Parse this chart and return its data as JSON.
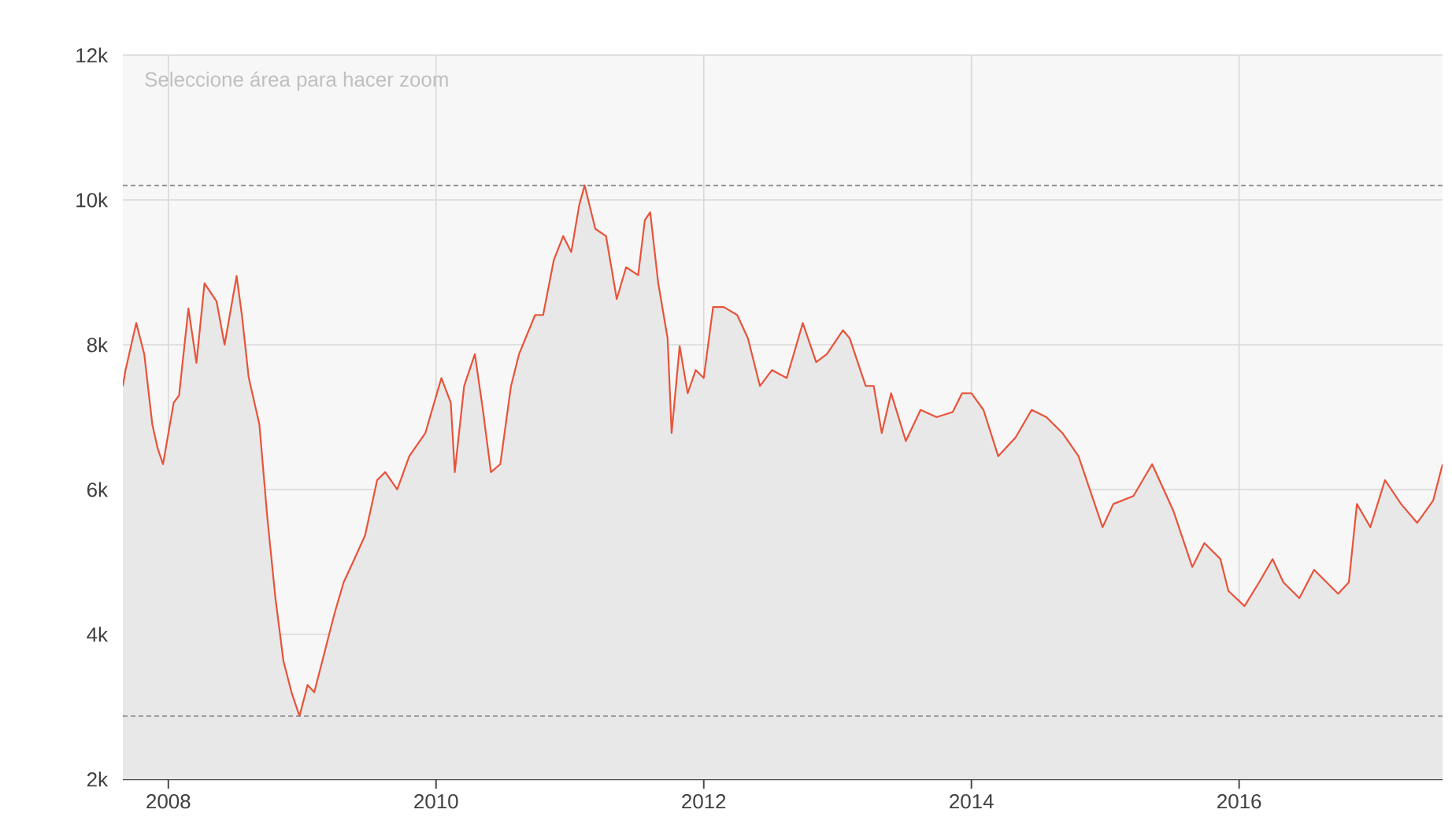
{
  "chart_data": {
    "type": "area",
    "annotations": [
      "Seleccione área para hacer zoom"
    ],
    "x": [
      2007.66,
      2007.68,
      2007.76,
      2007.82,
      2007.88,
      2007.92,
      2007.96,
      2008.04,
      2008.08,
      2008.15,
      2008.21,
      2008.27,
      2008.36,
      2008.42,
      2008.51,
      2008.55,
      2008.6,
      2008.68,
      2008.74,
      2008.8,
      2008.86,
      2008.92,
      2008.98,
      2009.04,
      2009.09,
      2009.15,
      2009.24,
      2009.31,
      2009.39,
      2009.47,
      2009.56,
      2009.62,
      2009.71,
      2009.8,
      2009.92,
      2010.04,
      2010.11,
      2010.14,
      2010.21,
      2010.29,
      2010.35,
      2010.41,
      2010.48,
      2010.56,
      2010.62,
      2010.74,
      2010.8,
      2010.88,
      2010.95,
      2011.01,
      2011.07,
      2011.11,
      2011.19,
      2011.27,
      2011.35,
      2011.42,
      2011.51,
      2011.56,
      2011.6,
      2011.66,
      2011.73,
      2011.76,
      2011.82,
      2011.88,
      2011.94,
      2012.0,
      2012.07,
      2012.15,
      2012.25,
      2012.33,
      2012.42,
      2012.51,
      2012.62,
      2012.74,
      2012.84,
      2012.92,
      2013.04,
      2013.09,
      2013.21,
      2013.27,
      2013.33,
      2013.4,
      2013.51,
      2013.62,
      2013.74,
      2013.86,
      2013.93,
      2014.0,
      2014.09,
      2014.2,
      2014.33,
      2014.45,
      2014.56,
      2014.68,
      2014.8,
      2014.98,
      2015.06,
      2015.21,
      2015.35,
      2015.51,
      2015.65,
      2015.74,
      2015.86,
      2015.92,
      2016.04,
      2016.15,
      2016.25,
      2016.33,
      2016.45,
      2016.56,
      2016.74,
      2016.82,
      2016.88,
      2016.98,
      2017.09,
      2017.21,
      2017.33,
      2017.45,
      2017.52
    ],
    "series": [
      {
        "color": "#e8533a",
        "values": [
          7430,
          7650,
          8300,
          7870,
          6900,
          6570,
          6350,
          7200,
          7300,
          8500,
          7750,
          8850,
          8600,
          8000,
          8950,
          8400,
          7550,
          6900,
          5600,
          4500,
          3630,
          3200,
          2870,
          3300,
          3200,
          3630,
          4280,
          4720,
          5040,
          5370,
          6130,
          6240,
          6000,
          6460,
          6780,
          7540,
          7200,
          6240,
          7430,
          7870,
          7100,
          6240,
          6350,
          7430,
          7870,
          8410,
          8410,
          9170,
          9500,
          9280,
          9930,
          10200,
          9600,
          9500,
          8630,
          9070,
          8960,
          9720,
          9830,
          8850,
          8090,
          6780,
          7980,
          7330,
          7650,
          7540,
          8520,
          8520,
          8410,
          8090,
          7430,
          7650,
          7540,
          8300,
          7760,
          7870,
          8200,
          8090,
          7430,
          7430,
          6780,
          7330,
          6670,
          7100,
          7000,
          7070,
          7330,
          7330,
          7100,
          6460,
          6720,
          7100,
          7000,
          6780,
          6460,
          5480,
          5800,
          5910,
          6350,
          5700,
          4930,
          5260,
          5040,
          4600,
          4390,
          4720,
          5040,
          4720,
          4500,
          4890,
          4560,
          4720,
          5800,
          5480,
          6130,
          5800,
          5540,
          5850,
          6350
        ]
      }
    ],
    "xlim": [
      2007.66,
      2017.52
    ],
    "ylim": [
      2000,
      12000
    ],
    "xticks": [
      2008,
      2010,
      2012,
      2014,
      2016
    ],
    "yticks": [
      {
        "value": 2000,
        "label": "2k"
      },
      {
        "value": 4000,
        "label": "4k"
      },
      {
        "value": 6000,
        "label": "6k"
      },
      {
        "value": 8000,
        "label": "8k"
      },
      {
        "value": 10000,
        "label": "10k"
      },
      {
        "value": 12000,
        "label": "12k"
      }
    ],
    "ref_lines": [
      {
        "axis": "y",
        "value": 10200,
        "line_style": "dashed"
      },
      {
        "axis": "y",
        "value": 2870,
        "line_style": "dashed"
      }
    ],
    "grid": true
  }
}
